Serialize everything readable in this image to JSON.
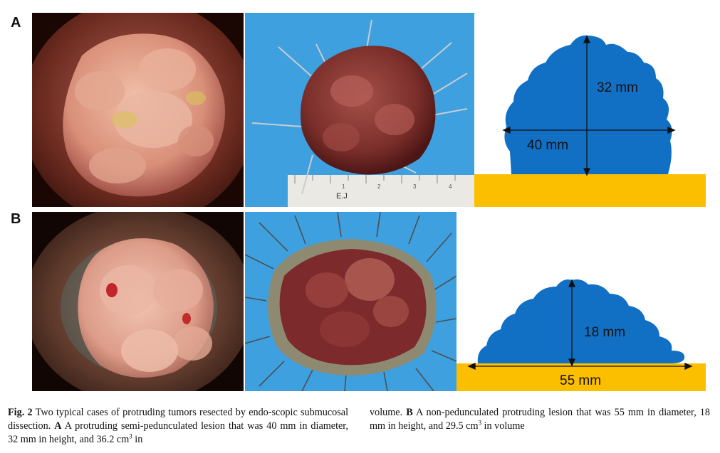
{
  "panels": [
    {
      "letter": "A",
      "diagram": {
        "height_label": "32 mm",
        "diameter_label": "40 mm"
      }
    },
    {
      "letter": "B",
      "diagram": {
        "height_label": "18 mm",
        "diameter_label": "55 mm"
      }
    }
  ],
  "ruler": {
    "ticks": [
      "1",
      "2",
      "3",
      "4"
    ],
    "brand": "E.J"
  },
  "caption": {
    "fig_label": "Fig. 2",
    "col1_text": "Two typical cases of protruding tumors resected by endo-scopic submucosal dissection.",
    "a_label": "A",
    "a_text_pre": "A protruding semi-pedunculated lesion that was 40 mm in diameter, 32 mm in height, and 36.2 cm",
    "a_sup": "3",
    "a_text_post": "in",
    "col2_pre": "volume.",
    "b_label": "B",
    "b_text_pre": "A non-pedunculated protruding lesion that was 55 mm in diameter, 18 mm in height, and 29.5 cm",
    "b_sup": "3",
    "b_text_post": "in volume"
  },
  "colors": {
    "tumor_blue": "#1270c4",
    "base_yellow": "#fcbf00",
    "photo_bg_blue": "#3fa0df"
  }
}
